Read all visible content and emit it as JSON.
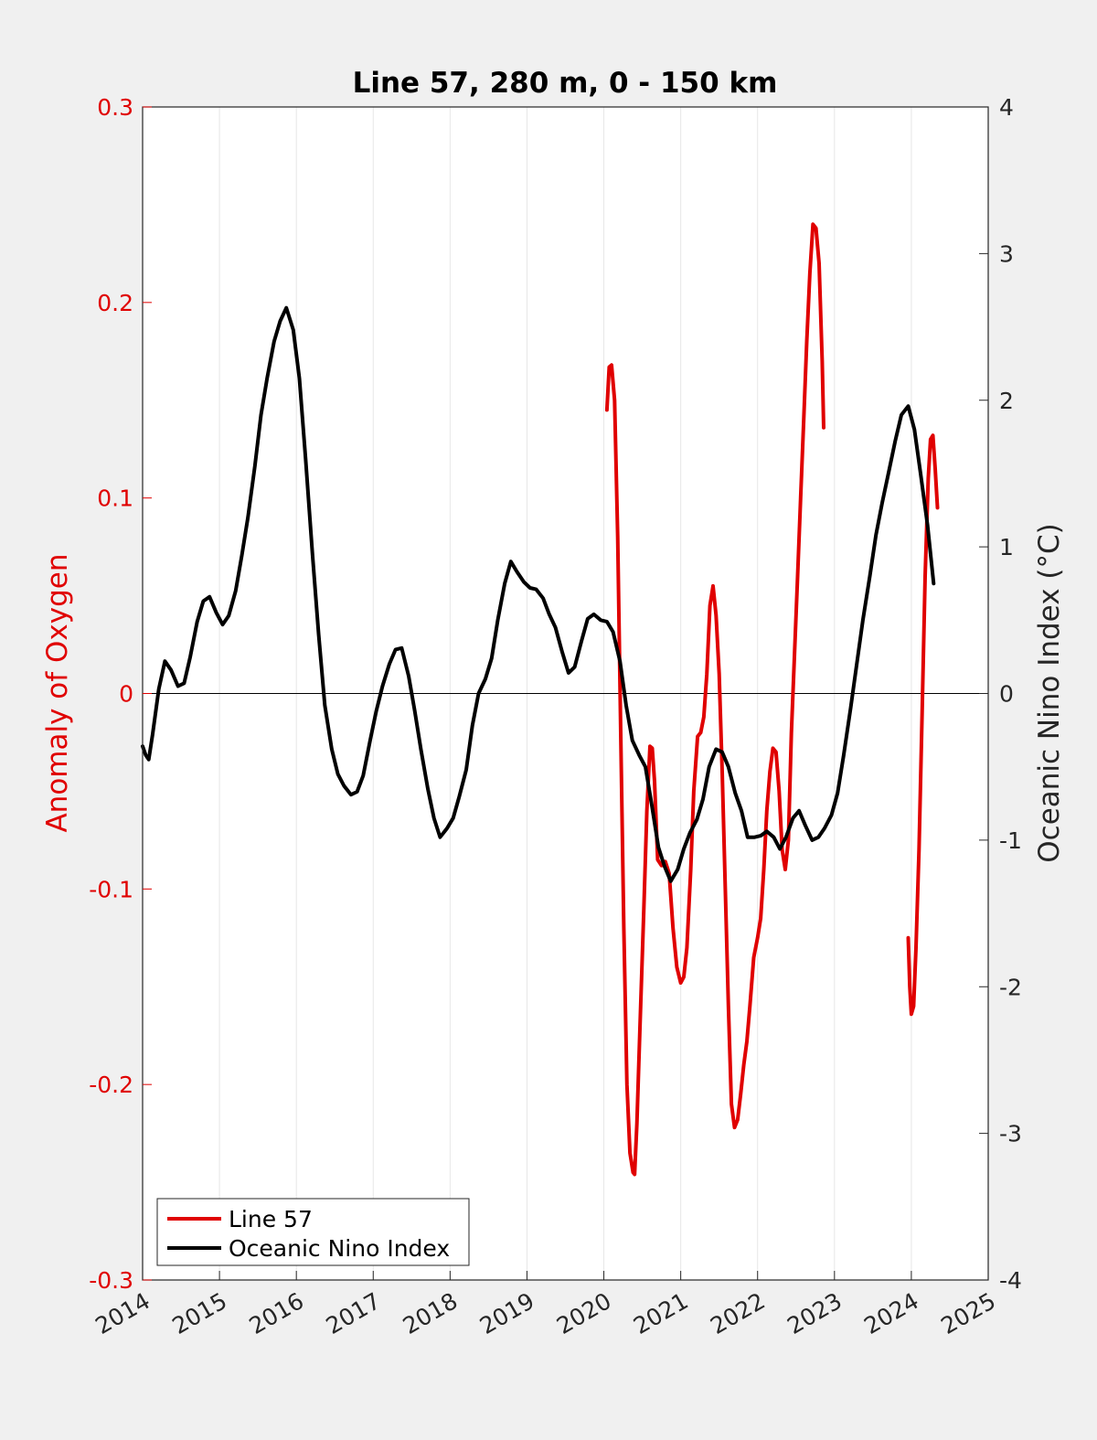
{
  "chart_data": {
    "type": "line",
    "title": "Line 57, 280 m, 0 - 150 km",
    "xlim": [
      2014,
      2025
    ],
    "x_ticks": [
      "2014",
      "2015",
      "2016",
      "2017",
      "2018",
      "2019",
      "2020",
      "2021",
      "2022",
      "2023",
      "2024",
      "2025"
    ],
    "y_left": {
      "label": "Anomaly of Oxygen",
      "ylim": [
        -0.3,
        0.3
      ],
      "ticks": [
        "-0.3",
        "-0.2",
        "-0.1",
        "0",
        "0.1",
        "0.2",
        "0.3"
      ],
      "color": "#e00000"
    },
    "y_right": {
      "label": "Oceanic Nino Index (°C)",
      "ylim": [
        -4,
        4
      ],
      "ticks": [
        "-4",
        "-3",
        "-2",
        "-1",
        "0",
        "1",
        "2",
        "3",
        "4"
      ],
      "color": "#262626"
    },
    "grid": "vertical",
    "zero_line": true,
    "legend": {
      "position": "bottom-left",
      "entries": [
        {
          "name": "Line 57",
          "color": "#e00000"
        },
        {
          "name": "Oceanic Nino Index",
          "color": "#000000"
        }
      ]
    },
    "series": [
      {
        "name": "Line 57",
        "axis": "left",
        "color": "#e00000",
        "segments": [
          [
            [
              2020.04,
              0.145
            ],
            [
              2020.07,
              0.167
            ],
            [
              2020.1,
              0.168
            ],
            [
              2020.14,
              0.15
            ],
            [
              2020.18,
              0.08
            ],
            [
              2020.22,
              -0.02
            ],
            [
              2020.26,
              -0.12
            ],
            [
              2020.3,
              -0.2
            ],
            [
              2020.34,
              -0.235
            ],
            [
              2020.38,
              -0.245
            ],
            [
              2020.4,
              -0.246
            ],
            [
              2020.43,
              -0.22
            ],
            [
              2020.47,
              -0.17
            ],
            [
              2020.52,
              -0.11
            ],
            [
              2020.56,
              -0.06
            ],
            [
              2020.6,
              -0.027
            ],
            [
              2020.63,
              -0.028
            ],
            [
              2020.66,
              -0.045
            ],
            [
              2020.7,
              -0.085
            ],
            [
              2020.75,
              -0.088
            ],
            [
              2020.8,
              -0.086
            ],
            [
              2020.85,
              -0.092
            ],
            [
              2020.9,
              -0.12
            ],
            [
              2020.95,
              -0.14
            ],
            [
              2021.0,
              -0.148
            ],
            [
              2021.04,
              -0.145
            ],
            [
              2021.08,
              -0.13
            ],
            [
              2021.13,
              -0.09
            ],
            [
              2021.17,
              -0.05
            ],
            [
              2021.22,
              -0.022
            ],
            [
              2021.26,
              -0.02
            ],
            [
              2021.3,
              -0.012
            ],
            [
              2021.34,
              0.01
            ],
            [
              2021.38,
              0.045
            ],
            [
              2021.42,
              0.055
            ],
            [
              2021.46,
              0.04
            ],
            [
              2021.5,
              0.01
            ],
            [
              2021.54,
              -0.04
            ],
            [
              2021.58,
              -0.1
            ],
            [
              2021.62,
              -0.16
            ],
            [
              2021.66,
              -0.21
            ],
            [
              2021.7,
              -0.222
            ],
            [
              2021.74,
              -0.218
            ],
            [
              2021.78,
              -0.205
            ],
            [
              2021.82,
              -0.19
            ],
            [
              2021.86,
              -0.178
            ],
            [
              2021.9,
              -0.16
            ],
            [
              2021.95,
              -0.135
            ],
            [
              2022.0,
              -0.125
            ],
            [
              2022.04,
              -0.115
            ],
            [
              2022.08,
              -0.09
            ],
            [
              2022.12,
              -0.06
            ],
            [
              2022.16,
              -0.04
            ],
            [
              2022.2,
              -0.028
            ],
            [
              2022.24,
              -0.03
            ],
            [
              2022.28,
              -0.05
            ],
            [
              2022.32,
              -0.08
            ],
            [
              2022.36,
              -0.09
            ],
            [
              2022.4,
              -0.075
            ],
            [
              2022.44,
              -0.02
            ],
            [
              2022.48,
              0.02
            ],
            [
              2022.52,
              0.06
            ],
            [
              2022.56,
              0.1
            ],
            [
              2022.6,
              0.14
            ],
            [
              2022.64,
              0.18
            ],
            [
              2022.68,
              0.215
            ],
            [
              2022.72,
              0.24
            ],
            [
              2022.76,
              0.238
            ],
            [
              2022.8,
              0.22
            ],
            [
              2022.84,
              0.17
            ],
            [
              2022.86,
              0.136
            ]
          ],
          [
            [
              2023.96,
              -0.125
            ],
            [
              2023.98,
              -0.15
            ],
            [
              2024.0,
              -0.164
            ],
            [
              2024.03,
              -0.16
            ],
            [
              2024.06,
              -0.13
            ],
            [
              2024.1,
              -0.08
            ],
            [
              2024.14,
              -0.01
            ],
            [
              2024.18,
              0.06
            ],
            [
              2024.22,
              0.11
            ],
            [
              2024.25,
              0.13
            ],
            [
              2024.28,
              0.132
            ],
            [
              2024.31,
              0.115
            ],
            [
              2024.34,
              0.095
            ]
          ]
        ]
      },
      {
        "name": "Oceanic Nino Index",
        "axis": "right",
        "color": "#000000",
        "points": [
          [
            2014.0,
            -0.36
          ],
          [
            2014.04,
            -0.42
          ],
          [
            2014.08,
            -0.45
          ],
          [
            2014.13,
            -0.28
          ],
          [
            2014.21,
            0.03
          ],
          [
            2014.29,
            0.22
          ],
          [
            2014.37,
            0.16
          ],
          [
            2014.46,
            0.05
          ],
          [
            2014.54,
            0.07
          ],
          [
            2014.62,
            0.25
          ],
          [
            2014.71,
            0.49
          ],
          [
            2014.79,
            0.63
          ],
          [
            2014.87,
            0.66
          ],
          [
            2014.96,
            0.55
          ],
          [
            2015.04,
            0.47
          ],
          [
            2015.12,
            0.53
          ],
          [
            2015.21,
            0.7
          ],
          [
            2015.29,
            0.94
          ],
          [
            2015.37,
            1.2
          ],
          [
            2015.46,
            1.55
          ],
          [
            2015.54,
            1.9
          ],
          [
            2015.62,
            2.15
          ],
          [
            2015.71,
            2.4
          ],
          [
            2015.79,
            2.54
          ],
          [
            2015.87,
            2.63
          ],
          [
            2015.96,
            2.48
          ],
          [
            2016.04,
            2.15
          ],
          [
            2016.12,
            1.6
          ],
          [
            2016.21,
            0.95
          ],
          [
            2016.29,
            0.4
          ],
          [
            2016.37,
            -0.08
          ],
          [
            2016.46,
            -0.38
          ],
          [
            2016.54,
            -0.55
          ],
          [
            2016.62,
            -0.63
          ],
          [
            2016.71,
            -0.69
          ],
          [
            2016.79,
            -0.67
          ],
          [
            2016.87,
            -0.56
          ],
          [
            2016.96,
            -0.32
          ],
          [
            2017.04,
            -0.12
          ],
          [
            2017.12,
            0.05
          ],
          [
            2017.21,
            0.2
          ],
          [
            2017.29,
            0.3
          ],
          [
            2017.37,
            0.31
          ],
          [
            2017.46,
            0.12
          ],
          [
            2017.54,
            -0.12
          ],
          [
            2017.62,
            -0.38
          ],
          [
            2017.71,
            -0.65
          ],
          [
            2017.79,
            -0.85
          ],
          [
            2017.87,
            -0.98
          ],
          [
            2017.96,
            -0.92
          ],
          [
            2018.04,
            -0.85
          ],
          [
            2018.12,
            -0.7
          ],
          [
            2018.21,
            -0.52
          ],
          [
            2018.29,
            -0.22
          ],
          [
            2018.37,
            0.0
          ],
          [
            2018.46,
            0.1
          ],
          [
            2018.54,
            0.24
          ],
          [
            2018.62,
            0.5
          ],
          [
            2018.71,
            0.75
          ],
          [
            2018.79,
            0.9
          ],
          [
            2018.87,
            0.83
          ],
          [
            2018.96,
            0.76
          ],
          [
            2019.04,
            0.72
          ],
          [
            2019.12,
            0.71
          ],
          [
            2019.21,
            0.65
          ],
          [
            2019.29,
            0.54
          ],
          [
            2019.37,
            0.45
          ],
          [
            2019.46,
            0.28
          ],
          [
            2019.54,
            0.14
          ],
          [
            2019.62,
            0.18
          ],
          [
            2019.71,
            0.36
          ],
          [
            2019.79,
            0.51
          ],
          [
            2019.87,
            0.54
          ],
          [
            2019.96,
            0.5
          ],
          [
            2020.04,
            0.49
          ],
          [
            2020.12,
            0.42
          ],
          [
            2020.21,
            0.22
          ],
          [
            2020.29,
            -0.08
          ],
          [
            2020.37,
            -0.32
          ],
          [
            2020.46,
            -0.42
          ],
          [
            2020.54,
            -0.5
          ],
          [
            2020.62,
            -0.75
          ],
          [
            2020.71,
            -1.05
          ],
          [
            2020.79,
            -1.18
          ],
          [
            2020.87,
            -1.28
          ],
          [
            2020.96,
            -1.2
          ],
          [
            2021.04,
            -1.06
          ],
          [
            2021.12,
            -0.95
          ],
          [
            2021.21,
            -0.86
          ],
          [
            2021.29,
            -0.72
          ],
          [
            2021.37,
            -0.5
          ],
          [
            2021.46,
            -0.38
          ],
          [
            2021.54,
            -0.4
          ],
          [
            2021.62,
            -0.5
          ],
          [
            2021.71,
            -0.68
          ],
          [
            2021.79,
            -0.8
          ],
          [
            2021.87,
            -0.98
          ],
          [
            2021.96,
            -0.98
          ],
          [
            2022.04,
            -0.97
          ],
          [
            2022.12,
            -0.94
          ],
          [
            2022.21,
            -0.98
          ],
          [
            2022.29,
            -1.06
          ],
          [
            2022.37,
            -0.98
          ],
          [
            2022.46,
            -0.85
          ],
          [
            2022.54,
            -0.8
          ],
          [
            2022.62,
            -0.9
          ],
          [
            2022.71,
            -1.0
          ],
          [
            2022.79,
            -0.98
          ],
          [
            2022.87,
            -0.92
          ],
          [
            2022.96,
            -0.83
          ],
          [
            2023.04,
            -0.68
          ],
          [
            2023.12,
            -0.42
          ],
          [
            2023.21,
            -0.1
          ],
          [
            2023.29,
            0.2
          ],
          [
            2023.37,
            0.5
          ],
          [
            2023.46,
            0.8
          ],
          [
            2023.54,
            1.08
          ],
          [
            2023.62,
            1.3
          ],
          [
            2023.71,
            1.52
          ],
          [
            2023.79,
            1.72
          ],
          [
            2023.87,
            1.9
          ],
          [
            2023.96,
            1.96
          ],
          [
            2024.04,
            1.8
          ],
          [
            2024.12,
            1.5
          ],
          [
            2024.21,
            1.15
          ],
          [
            2024.29,
            0.75
          ]
        ]
      }
    ]
  }
}
